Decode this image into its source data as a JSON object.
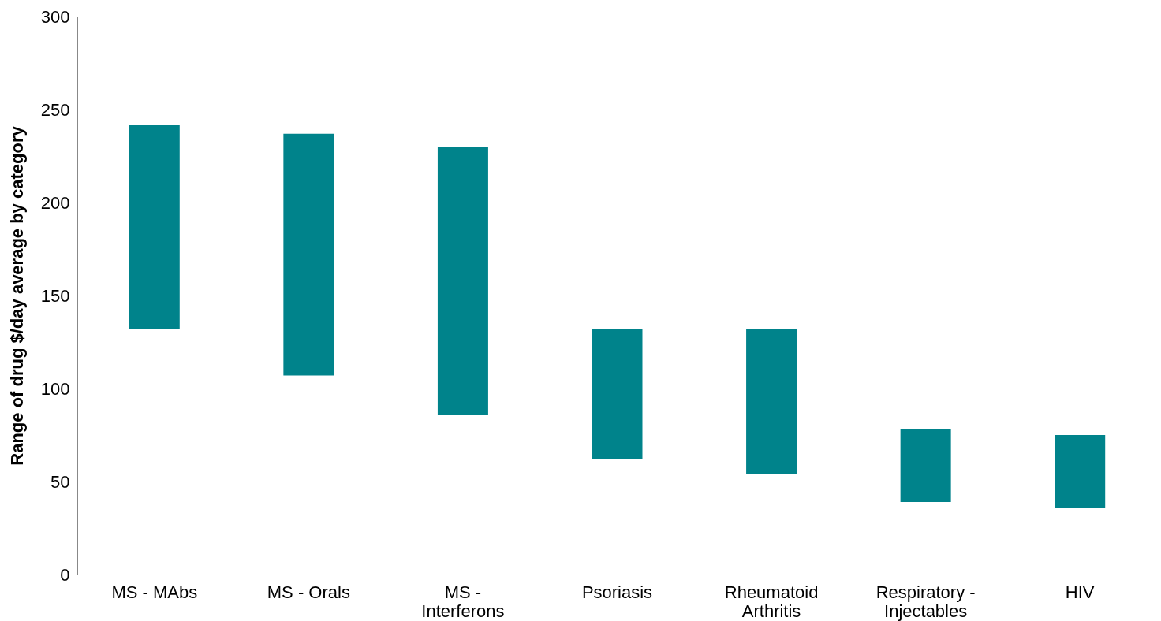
{
  "chart_data": {
    "type": "bar",
    "ylabel": "Range of drug $/day average by category",
    "categories": [
      "MS - MAbs",
      "MS - Orals",
      "MS - Interferons",
      "Psoriasis",
      "Rheumatoid Arthritis",
      "Respiratory - Injectables",
      "HIV"
    ],
    "base": [
      132,
      107,
      86,
      62,
      54,
      39,
      36
    ],
    "values": [
      110,
      130,
      144,
      70,
      78,
      39,
      39
    ],
    "color": "#00838b",
    "ylim": [
      0,
      300
    ],
    "yticks": [
      0,
      50,
      100,
      150,
      200,
      250,
      300
    ],
    "grid": false
  }
}
